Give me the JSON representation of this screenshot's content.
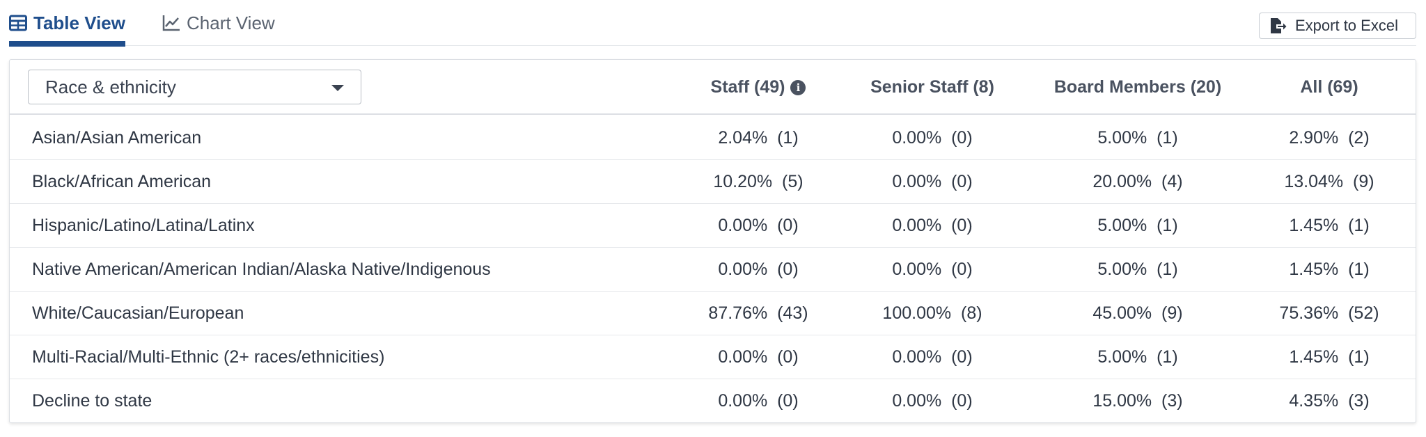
{
  "tabs": {
    "table_view": {
      "label": "Table View",
      "icon": "table-icon"
    },
    "chart_view": {
      "label": "Chart View",
      "icon": "line-chart-icon"
    }
  },
  "export_button": {
    "label": "Export to Excel",
    "icon": "file-export-icon"
  },
  "dropdown": {
    "selected": "Race & ethnicity"
  },
  "columns": [
    {
      "label": "Staff (49)",
      "has_info": true
    },
    {
      "label": "Senior Staff (8)"
    },
    {
      "label": "Board Members (20)"
    },
    {
      "label": "All (69)"
    }
  ],
  "rows": [
    {
      "label": "Asian/Asian American",
      "values": [
        "2.04%  (1)",
        "0.00%  (0)",
        "5.00%  (1)",
        "2.90%  (2)"
      ]
    },
    {
      "label": "Black/African American",
      "values": [
        "10.20%  (5)",
        "0.00%  (0)",
        "20.00%  (4)",
        "13.04%  (9)"
      ]
    },
    {
      "label": "Hispanic/Latino/Latina/Latinx",
      "values": [
        "0.00%  (0)",
        "0.00%  (0)",
        "5.00%  (1)",
        "1.45%  (1)"
      ]
    },
    {
      "label": "Native American/American Indian/Alaska Native/Indigenous",
      "values": [
        "0.00%  (0)",
        "0.00%  (0)",
        "5.00%  (1)",
        "1.45%  (1)"
      ]
    },
    {
      "label": "White/Caucasian/European",
      "values": [
        "87.76%  (43)",
        "100.00%  (8)",
        "45.00%  (9)",
        "75.36%  (52)"
      ]
    },
    {
      "label": "Multi-Racial/Multi-Ethnic (2+ races/ethnicities)",
      "values": [
        "0.00%  (0)",
        "0.00%  (0)",
        "5.00%  (1)",
        "1.45%  (1)"
      ]
    },
    {
      "label": "Decline to state",
      "values": [
        "0.00%  (0)",
        "0.00%  (0)",
        "15.00%  (3)",
        "4.35%  (3)"
      ]
    }
  ],
  "colors": {
    "accent": "#1f4e8c",
    "text": "#2f3744",
    "border": "#dcdfe4"
  }
}
